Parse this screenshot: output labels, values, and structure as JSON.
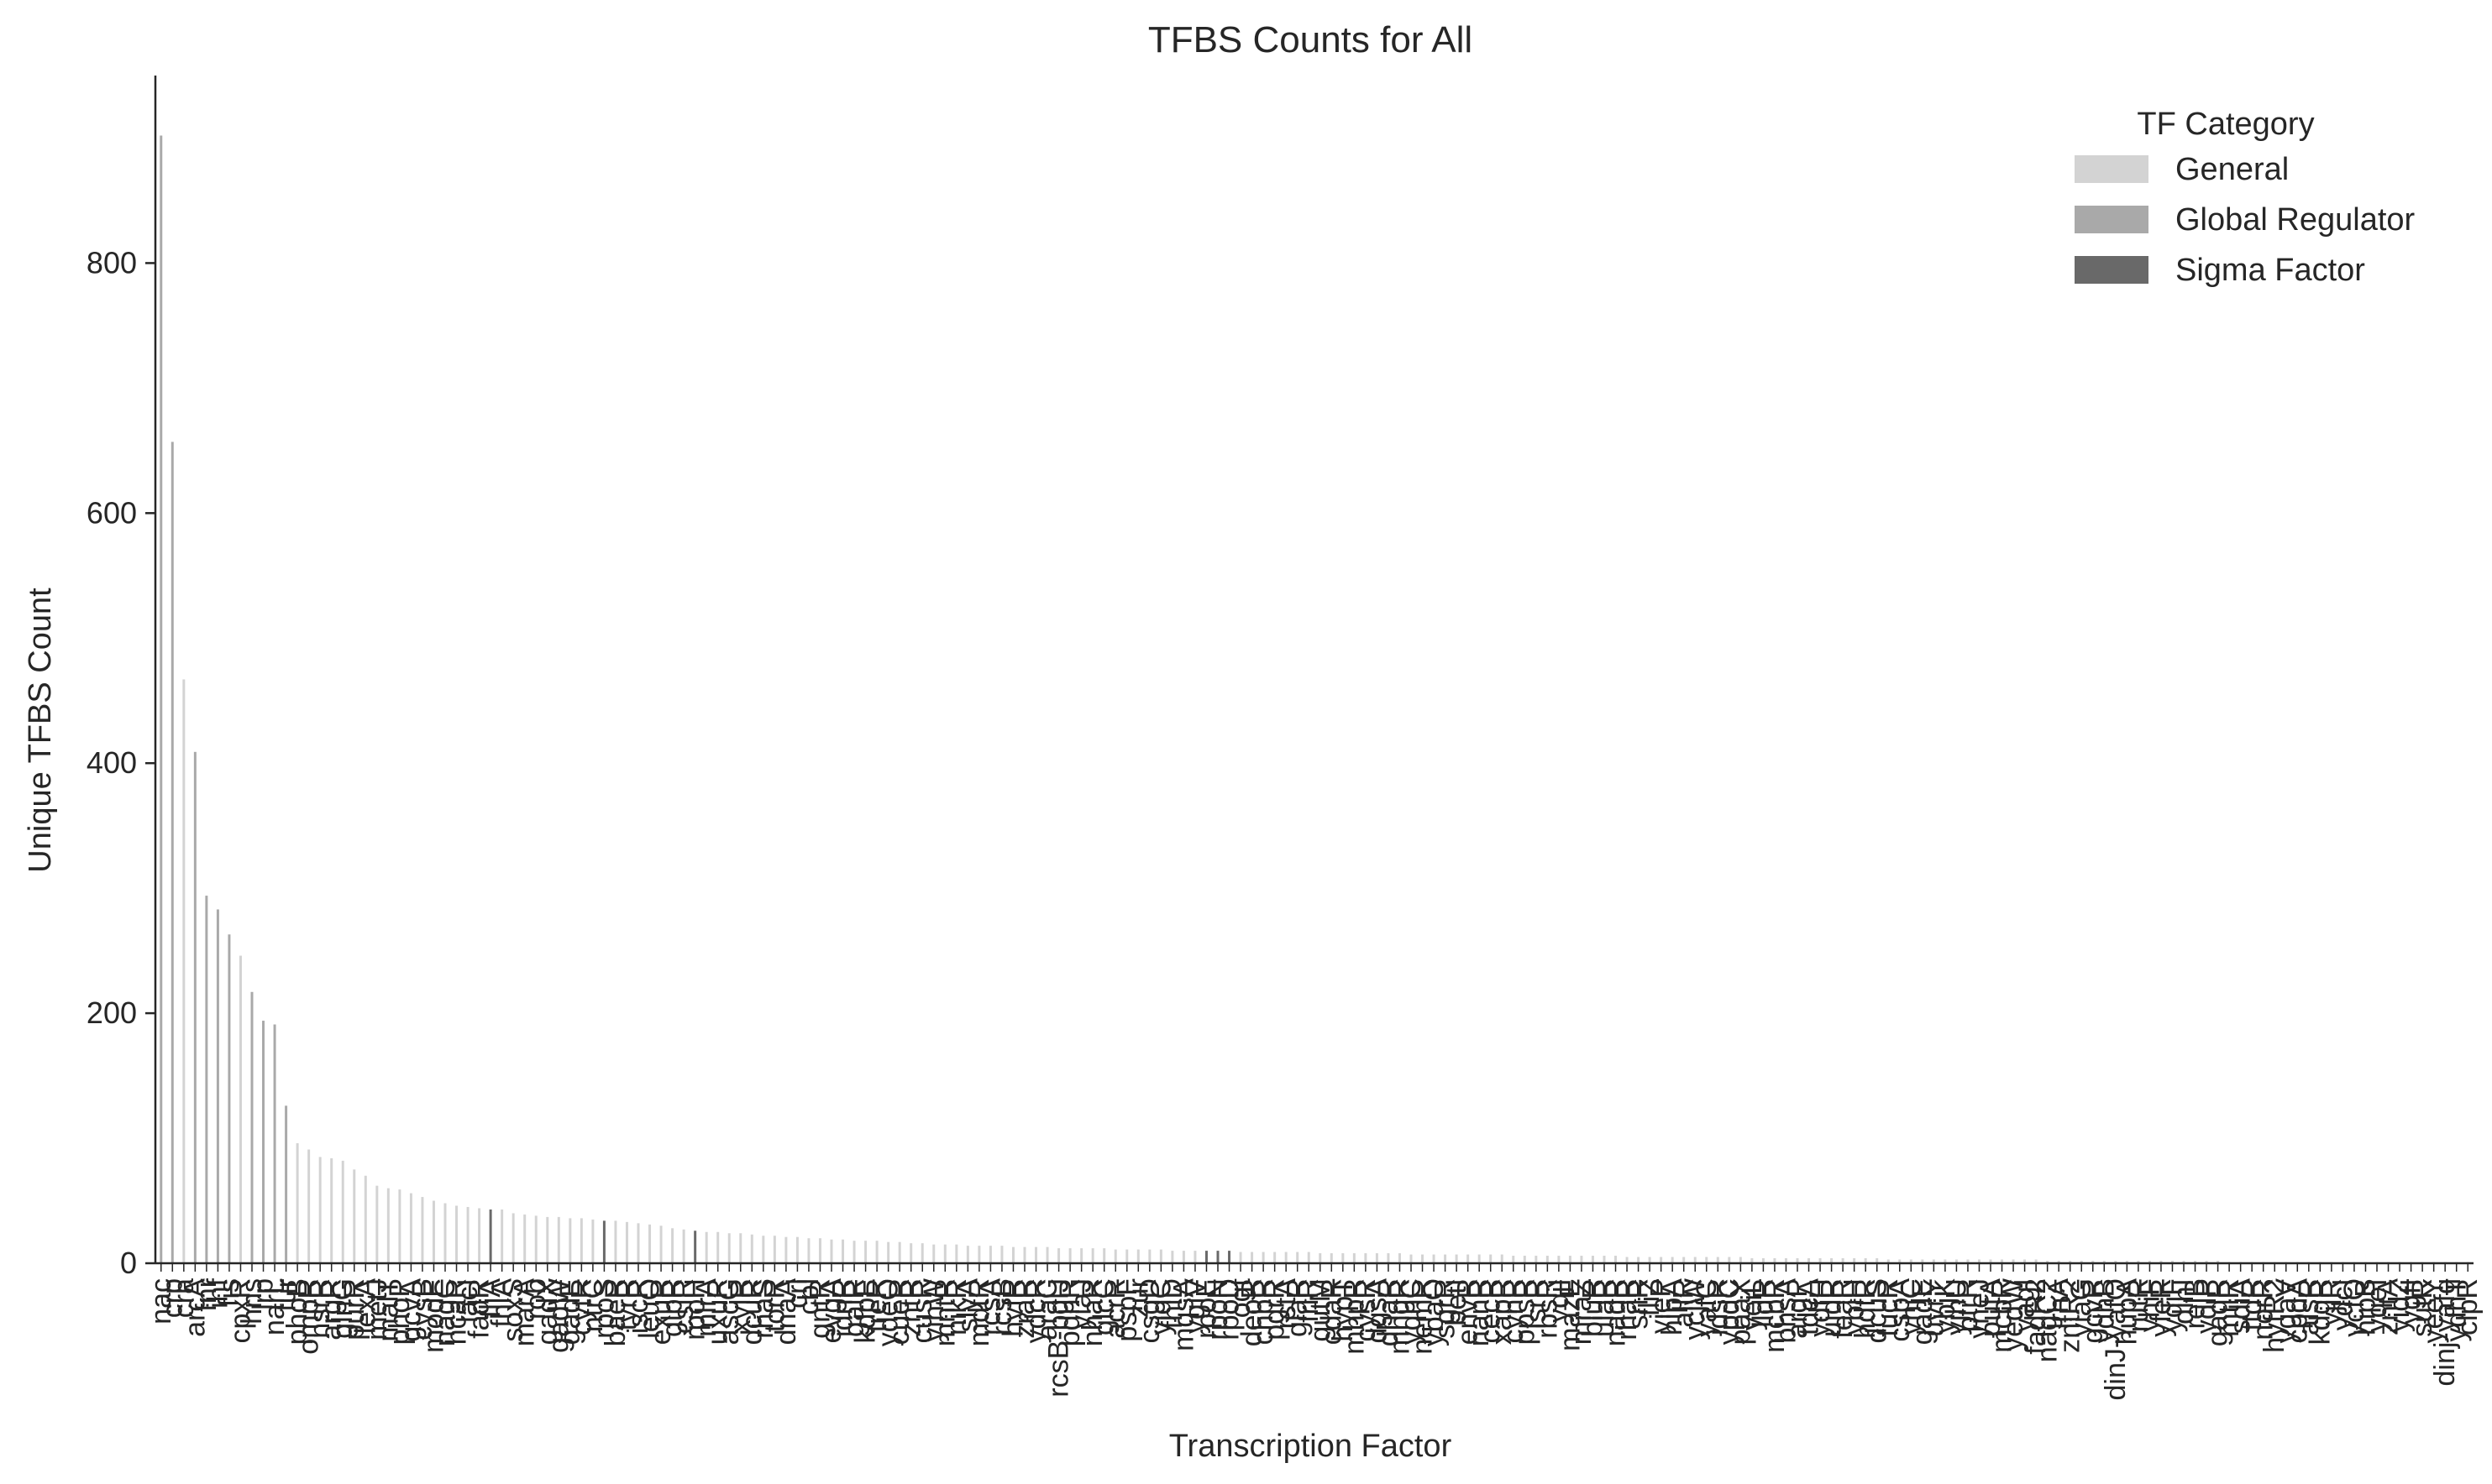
{
  "chart_data": {
    "type": "bar",
    "title": "TFBS Counts for All",
    "xlabel": "Transcription Factor",
    "ylabel": "Unique TFBS Count",
    "ylim": [
      0,
      950
    ],
    "yticks": [
      0,
      200,
      400,
      600,
      800
    ],
    "grid": false,
    "legend": {
      "title": "TF Category",
      "placement": "top-right",
      "entries": [
        {
          "name": "General",
          "color": "#d3d3d3"
        },
        {
          "name": "Global Regulator",
          "color": "#a9a9a9"
        },
        {
          "name": "Sigma Factor",
          "color": "#696969"
        }
      ]
    },
    "categories": [
      "nac",
      "crp",
      "cra",
      "arcA",
      "fnr",
      "ihf",
      "fis",
      "cpxR",
      "hns",
      "lrp",
      "narL",
      "fur",
      "phoB",
      "ompR",
      "nsrR",
      "argR",
      "glnG",
      "purR",
      "lexA",
      "metJ",
      "malT",
      "phoP",
      "gcvA",
      "cysB",
      "modE",
      "nagC",
      "hcaR",
      "lacI",
      "fadR",
      "fliA",
      "fhlA",
      "soxS",
      "marA",
      "rob",
      "gadX",
      "gadW",
      "gadE",
      "cytR",
      "ntrC",
      "rpoS",
      "baeR",
      "tyrR",
      "iscR",
      "leuO",
      "exuR",
      "glpR",
      "csiR",
      "rpoH",
      "mlrA",
      "uxuR",
      "ascG",
      "xylR",
      "dcuR",
      "rhaS",
      "torR",
      "dnaA",
      "crl",
      "cbl",
      "gntR",
      "evgA",
      "idnR",
      "galR",
      "kdpE",
      "treR",
      "ydeO",
      "cueR",
      "zntR",
      "cusR",
      "yihW",
      "mntR",
      "nikR",
      "slyA",
      "mdtR",
      "rcsA",
      "rcsB",
      "hyfR",
      "zraR",
      "ydcR",
      "araC",
      "rcsB-bglJ",
      "pdhR",
      "yiaJ",
      "nhaR",
      "glcC",
      "acrR",
      "pspF",
      "zur",
      "csgD",
      "yjdC",
      "fhlD",
      "mqsA",
      "ygiV",
      "rpoE",
      "rpoN",
      "rpoD",
      "ogt",
      "deoR",
      "chbR",
      "pgrR",
      "rstA",
      "glaR",
      "frlR",
      "gutM",
      "cdaR",
      "hypT",
      "mhpR",
      "cysR",
      "dgsA",
      "dhaR",
      "mngR",
      "yqhC",
      "nemR",
      "ybaO",
      "sgrR",
      "betI",
      "envR",
      "nanR",
      "cecR",
      "xapR",
      "cynR",
      "ppsR",
      "lsrR",
      "rbsR",
      "yqjI",
      "mazE",
      "mraZ",
      "bluR",
      "ulaR",
      "nadR",
      "rhaR",
      "srlR",
      "fliZ",
      "yieP",
      "hipA",
      "allR",
      "ycjW",
      "yafC",
      "idsR",
      "ypdC",
      "paaX",
      "yeiL",
      "lldR",
      "mcbR",
      "bhsA",
      "argP",
      "tdcA",
      "ydfH",
      "uidR",
      "feaR",
      "ybiH",
      "hdfR",
      "dcuS",
      "fucR",
      "cspA",
      "yhjC",
      "gadE",
      "uvrY",
      "ybjK",
      "yjhU",
      "ptrR",
      "yneJ",
      "putA",
      "mcbR",
      "yedW",
      "yagI",
      "fadR2",
      "nagC2",
      "lrhA",
      "zntR2",
      "yiaG",
      "gcvR",
      "ydhB",
      "dinJ-yafQ",
      "hupA",
      "rutR",
      "yhiF",
      "yfeR",
      "ydjF",
      "dinI",
      "relB",
      "ydiP",
      "gadR",
      "mtlR",
      "sdiA",
      "ttdR",
      "norR",
      "hyfR2",
      "ygaV",
      "cpdA",
      "alsR",
      "kdgR",
      "yjiR",
      "ydcI",
      "ycfQ",
      "hipB",
      "yqeI",
      "zntA",
      "yidZ",
      "ygfI",
      "sutR",
      "yeeY",
      "dinj-yafq",
      "ydhT",
      "clpR"
    ],
    "values": [
      902,
      657,
      467,
      409,
      294,
      283,
      263,
      246,
      217,
      194,
      191,
      126,
      96,
      91,
      85,
      84,
      82,
      75,
      70,
      62,
      60,
      59,
      56,
      53,
      50,
      48,
      46,
      45,
      44,
      43,
      43,
      40,
      39,
      38,
      37,
      37,
      36,
      36,
      35,
      34,
      34,
      33,
      32,
      31,
      30,
      28,
      27,
      26,
      25,
      25,
      24,
      24,
      23,
      22,
      22,
      21,
      21,
      20,
      20,
      19,
      19,
      18,
      18,
      18,
      17,
      17,
      16,
      16,
      15,
      15,
      15,
      14,
      14,
      14,
      14,
      13,
      13,
      13,
      13,
      12,
      12,
      12,
      12,
      12,
      11,
      11,
      11,
      11,
      11,
      10,
      10,
      10,
      10,
      10,
      10,
      9,
      9,
      9,
      9,
      9,
      9,
      9,
      8,
      8,
      8,
      8,
      8,
      8,
      8,
      8,
      7,
      7,
      7,
      7,
      7,
      7,
      7,
      7,
      7,
      6,
      6,
      6,
      6,
      6,
      6,
      6,
      6,
      6,
      6,
      5,
      5,
      5,
      5,
      5,
      5,
      5,
      5,
      5,
      5,
      5,
      4,
      4,
      4,
      4,
      4,
      4,
      4,
      4,
      4,
      4,
      4,
      4,
      3,
      3,
      3,
      3,
      3,
      3,
      3,
      3,
      3,
      3,
      3,
      3,
      3,
      3,
      2,
      2,
      2,
      2,
      2,
      2,
      2,
      2,
      2,
      2,
      2,
      2,
      2,
      2,
      2,
      2,
      1,
      1,
      1,
      1,
      1,
      1,
      1,
      1,
      1,
      1,
      1,
      1,
      1,
      1,
      1,
      1,
      1,
      1,
      1,
      1,
      1,
      1
    ],
    "category_of": [
      "Global Regulator",
      "Global Regulator",
      "General",
      "Global Regulator",
      "Global Regulator",
      "Global Regulator",
      "Global Regulator",
      "General",
      "Global Regulator",
      "Global Regulator",
      "Global Regulator",
      "Global Regulator",
      "General",
      "General",
      "General",
      "General",
      "General",
      "General",
      "General",
      "General",
      "General",
      "General",
      "General",
      "General",
      "General",
      "General",
      "General",
      "General",
      "General",
      "Sigma Factor",
      "General",
      "General",
      "General",
      "General",
      "General",
      "General",
      "General",
      "General",
      "General",
      "Sigma Factor",
      "General",
      "General",
      "General",
      "General",
      "General",
      "General",
      "General",
      "Sigma Factor",
      "General",
      "General",
      "General",
      "General",
      "General",
      "General",
      "General",
      "General",
      "General",
      "General",
      "General",
      "General",
      "General",
      "General",
      "General",
      "General",
      "General",
      "General",
      "General",
      "General",
      "General",
      "General",
      "General",
      "General",
      "General",
      "General",
      "General",
      "General",
      "General",
      "General",
      "General",
      "General",
      "General",
      "General",
      "General",
      "General",
      "General",
      "General",
      "General",
      "General",
      "General",
      "General",
      "General",
      "General",
      "Sigma Factor",
      "Sigma Factor",
      "Sigma Factor",
      "General",
      "General",
      "General",
      "General",
      "General",
      "General",
      "General",
      "General",
      "General",
      "General",
      "General",
      "General",
      "General",
      "General",
      "General",
      "General",
      "General",
      "General",
      "General",
      "General",
      "General",
      "General",
      "General",
      "General",
      "General",
      "General",
      "General",
      "General",
      "General",
      "General",
      "General",
      "General",
      "General",
      "General",
      "General",
      "General",
      "General",
      "General",
      "General",
      "General",
      "General",
      "General",
      "General",
      "General",
      "General",
      "General",
      "General",
      "General",
      "General",
      "General",
      "General",
      "General",
      "General",
      "General",
      "General",
      "General",
      "General",
      "General",
      "General",
      "General",
      "General",
      "General",
      "General",
      "General",
      "General",
      "General",
      "General",
      "General",
      "General",
      "General",
      "General",
      "General",
      "General",
      "General",
      "General",
      "General",
      "General",
      "General",
      "General",
      "General",
      "General",
      "General",
      "General",
      "General",
      "General",
      "General",
      "General",
      "General",
      "General",
      "General",
      "General",
      "General",
      "General",
      "General",
      "General",
      "General",
      "General",
      "General",
      "General",
      "General",
      "General",
      "General",
      "General",
      "General",
      "General"
    ]
  }
}
